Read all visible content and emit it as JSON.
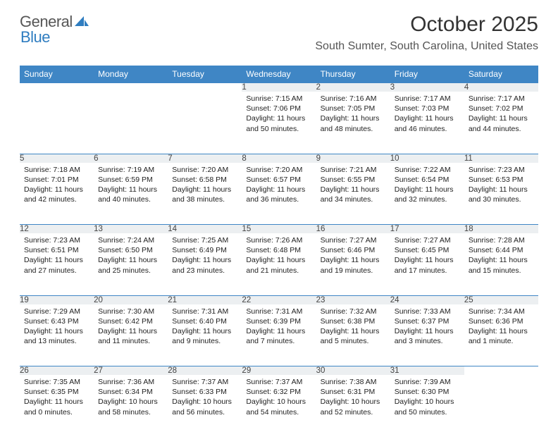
{
  "brand": {
    "part1": "General",
    "part2": "Blue"
  },
  "title": "October 2025",
  "location": "South Sumter, South Carolina, United States",
  "colors": {
    "header_bg": "#3f86c5",
    "header_text": "#ffffff",
    "daynum_bg": "#eceff1",
    "border": "#3f86c5",
    "logo_gray": "#565656",
    "logo_blue": "#2f7dc0"
  },
  "weekdays": [
    "Sunday",
    "Monday",
    "Tuesday",
    "Wednesday",
    "Thursday",
    "Friday",
    "Saturday"
  ],
  "weeks": [
    {
      "nums": [
        "",
        "",
        "",
        "1",
        "2",
        "3",
        "4"
      ],
      "cells": [
        null,
        null,
        null,
        {
          "sunrise": "7:15 AM",
          "sunset": "7:06 PM",
          "daylight": "11 hours and 50 minutes."
        },
        {
          "sunrise": "7:16 AM",
          "sunset": "7:05 PM",
          "daylight": "11 hours and 48 minutes."
        },
        {
          "sunrise": "7:17 AM",
          "sunset": "7:03 PM",
          "daylight": "11 hours and 46 minutes."
        },
        {
          "sunrise": "7:17 AM",
          "sunset": "7:02 PM",
          "daylight": "11 hours and 44 minutes."
        }
      ]
    },
    {
      "nums": [
        "5",
        "6",
        "7",
        "8",
        "9",
        "10",
        "11"
      ],
      "cells": [
        {
          "sunrise": "7:18 AM",
          "sunset": "7:01 PM",
          "daylight": "11 hours and 42 minutes."
        },
        {
          "sunrise": "7:19 AM",
          "sunset": "6:59 PM",
          "daylight": "11 hours and 40 minutes."
        },
        {
          "sunrise": "7:20 AM",
          "sunset": "6:58 PM",
          "daylight": "11 hours and 38 minutes."
        },
        {
          "sunrise": "7:20 AM",
          "sunset": "6:57 PM",
          "daylight": "11 hours and 36 minutes."
        },
        {
          "sunrise": "7:21 AM",
          "sunset": "6:55 PM",
          "daylight": "11 hours and 34 minutes."
        },
        {
          "sunrise": "7:22 AM",
          "sunset": "6:54 PM",
          "daylight": "11 hours and 32 minutes."
        },
        {
          "sunrise": "7:23 AM",
          "sunset": "6:53 PM",
          "daylight": "11 hours and 30 minutes."
        }
      ]
    },
    {
      "nums": [
        "12",
        "13",
        "14",
        "15",
        "16",
        "17",
        "18"
      ],
      "cells": [
        {
          "sunrise": "7:23 AM",
          "sunset": "6:51 PM",
          "daylight": "11 hours and 27 minutes."
        },
        {
          "sunrise": "7:24 AM",
          "sunset": "6:50 PM",
          "daylight": "11 hours and 25 minutes."
        },
        {
          "sunrise": "7:25 AM",
          "sunset": "6:49 PM",
          "daylight": "11 hours and 23 minutes."
        },
        {
          "sunrise": "7:26 AM",
          "sunset": "6:48 PM",
          "daylight": "11 hours and 21 minutes."
        },
        {
          "sunrise": "7:27 AM",
          "sunset": "6:46 PM",
          "daylight": "11 hours and 19 minutes."
        },
        {
          "sunrise": "7:27 AM",
          "sunset": "6:45 PM",
          "daylight": "11 hours and 17 minutes."
        },
        {
          "sunrise": "7:28 AM",
          "sunset": "6:44 PM",
          "daylight": "11 hours and 15 minutes."
        }
      ]
    },
    {
      "nums": [
        "19",
        "20",
        "21",
        "22",
        "23",
        "24",
        "25"
      ],
      "cells": [
        {
          "sunrise": "7:29 AM",
          "sunset": "6:43 PM",
          "daylight": "11 hours and 13 minutes."
        },
        {
          "sunrise": "7:30 AM",
          "sunset": "6:42 PM",
          "daylight": "11 hours and 11 minutes."
        },
        {
          "sunrise": "7:31 AM",
          "sunset": "6:40 PM",
          "daylight": "11 hours and 9 minutes."
        },
        {
          "sunrise": "7:31 AM",
          "sunset": "6:39 PM",
          "daylight": "11 hours and 7 minutes."
        },
        {
          "sunrise": "7:32 AM",
          "sunset": "6:38 PM",
          "daylight": "11 hours and 5 minutes."
        },
        {
          "sunrise": "7:33 AM",
          "sunset": "6:37 PM",
          "daylight": "11 hours and 3 minutes."
        },
        {
          "sunrise": "7:34 AM",
          "sunset": "6:36 PM",
          "daylight": "11 hours and 1 minute."
        }
      ]
    },
    {
      "nums": [
        "26",
        "27",
        "28",
        "29",
        "30",
        "31",
        ""
      ],
      "cells": [
        {
          "sunrise": "7:35 AM",
          "sunset": "6:35 PM",
          "daylight": "11 hours and 0 minutes."
        },
        {
          "sunrise": "7:36 AM",
          "sunset": "6:34 PM",
          "daylight": "10 hours and 58 minutes."
        },
        {
          "sunrise": "7:37 AM",
          "sunset": "6:33 PM",
          "daylight": "10 hours and 56 minutes."
        },
        {
          "sunrise": "7:37 AM",
          "sunset": "6:32 PM",
          "daylight": "10 hours and 54 minutes."
        },
        {
          "sunrise": "7:38 AM",
          "sunset": "6:31 PM",
          "daylight": "10 hours and 52 minutes."
        },
        {
          "sunrise": "7:39 AM",
          "sunset": "6:30 PM",
          "daylight": "10 hours and 50 minutes."
        },
        null
      ]
    }
  ],
  "labels": {
    "sunrise": "Sunrise:",
    "sunset": "Sunset:",
    "daylight": "Daylight:"
  }
}
